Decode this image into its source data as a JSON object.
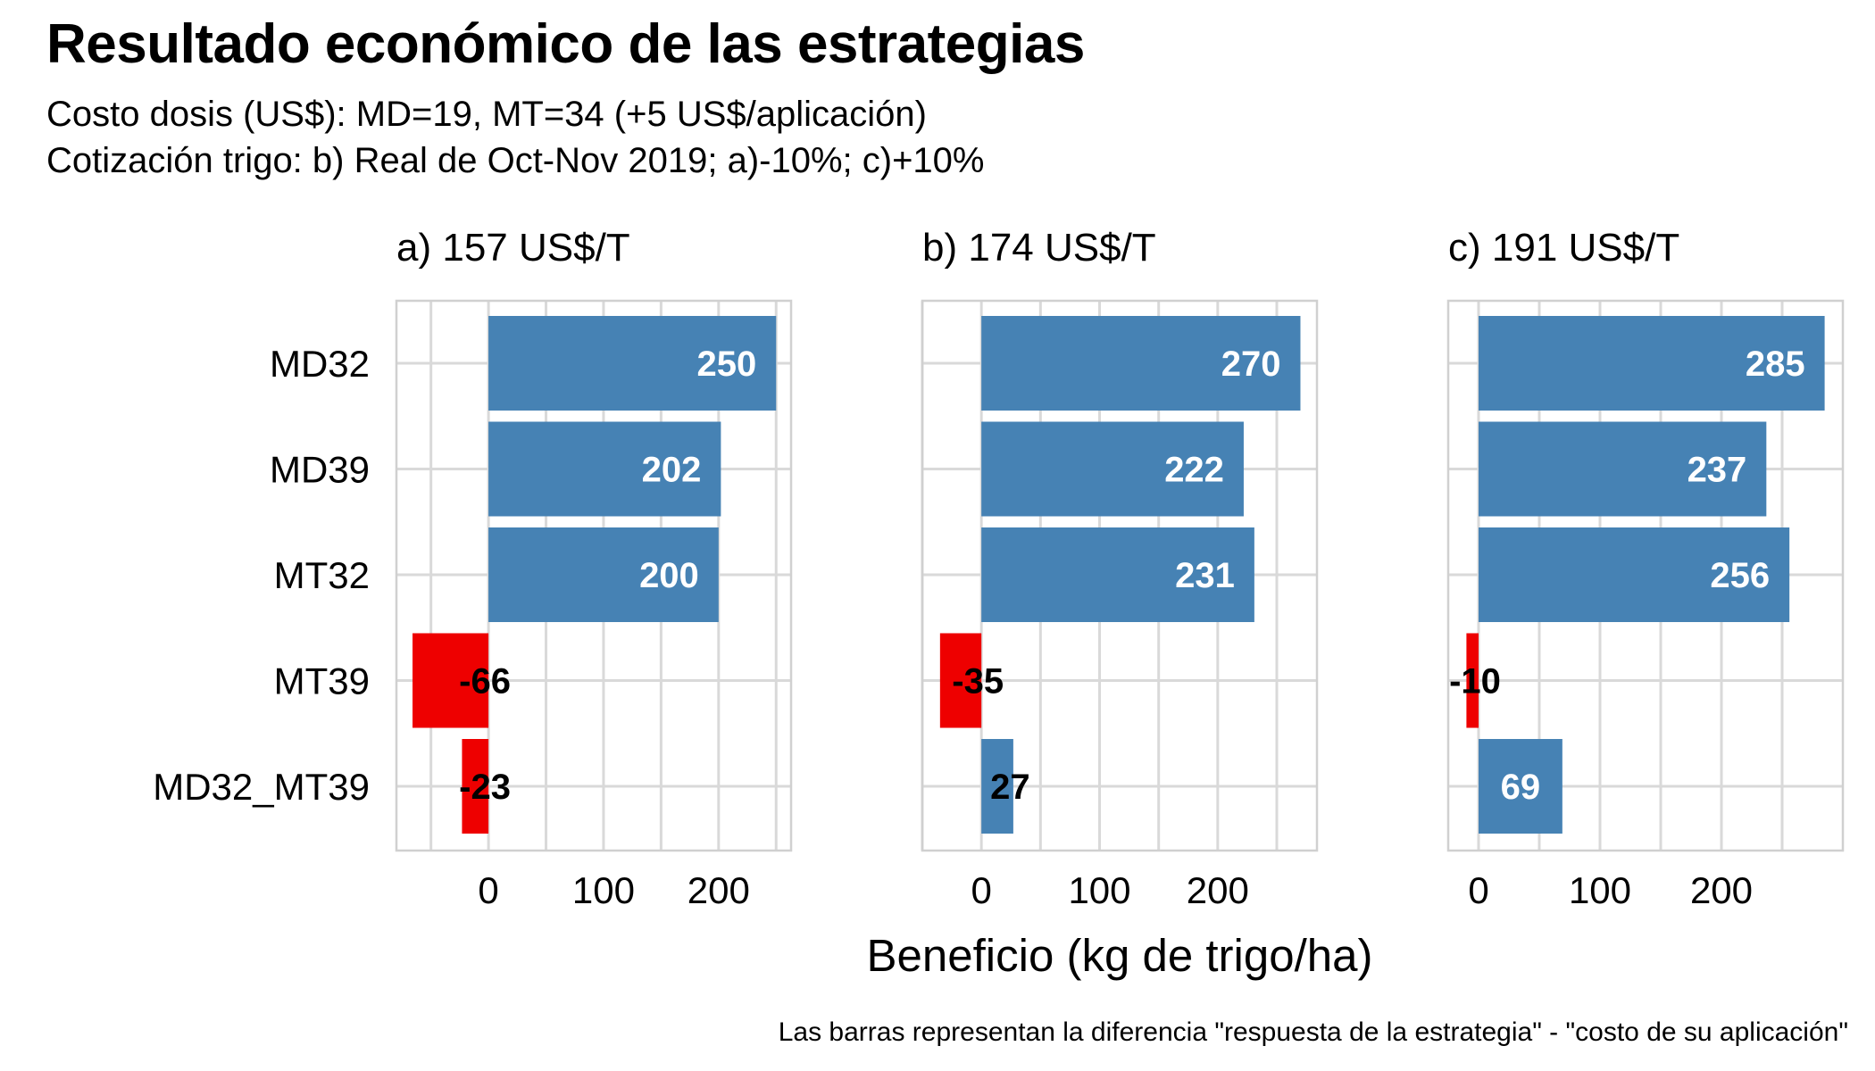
{
  "title": "Resultado económico de las estrategias",
  "subtitle_lines": [
    "Costo dosis (US$): MD=19, MT=34 (+5 US$/aplicación)",
    "Cotización trigo: b) Real de Oct-Nov 2019; a)-10%; c)+10%"
  ],
  "caption": "Las barras representan la diferencia \"respuesta de la estrategia\" - \"costo de su aplicación\"",
  "chart_data": {
    "type": "bar",
    "orientation": "horizontal",
    "xlabel": "Beneficio (kg de trigo/ha)",
    "ylabel": "",
    "categories": [
      "MD32",
      "MD39",
      "MT32",
      "MT39",
      "MD32_MT39"
    ],
    "x_ticks": [
      0,
      100,
      200
    ],
    "grid": true,
    "legend": "none",
    "colors": {
      "positive": "#4682B4",
      "negative": "#EE0000",
      "grid": "#D9D9D9",
      "border": "#D0D0D0"
    },
    "facets": [
      {
        "title": "a) 157 US$/T",
        "values": [
          250,
          202,
          200,
          -66,
          -23
        ],
        "xlim": [
          -80,
          263
        ]
      },
      {
        "title": "b) 174 US$/T",
        "values": [
          270,
          222,
          231,
          -35,
          27
        ],
        "xlim": [
          -50,
          284
        ]
      },
      {
        "title": "c) 191 US$/T",
        "values": [
          285,
          237,
          256,
          -10,
          69
        ],
        "xlim": [
          -25,
          300
        ]
      }
    ]
  }
}
